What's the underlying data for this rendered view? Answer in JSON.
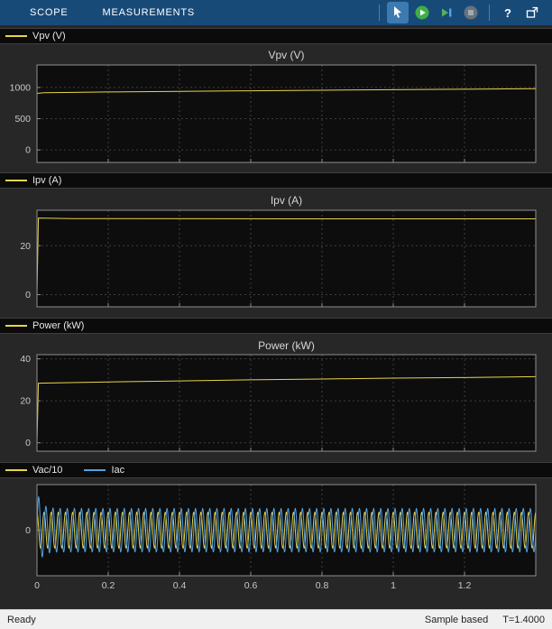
{
  "toolbar": {
    "tabs": [
      {
        "label": "SCOPE"
      },
      {
        "label": "MEASUREMENTS"
      }
    ],
    "help_label": "?",
    "buttons": [
      "pointer-tool",
      "run",
      "step-forward",
      "stop",
      "help",
      "dock"
    ]
  },
  "statusbar": {
    "left": "Ready",
    "sample": "Sample based",
    "time": "T=1.4000"
  },
  "colors": {
    "yellow": "#e8d44c",
    "blue": "#53a2e0",
    "grid": "#3e3e3e",
    "axes_bg": "#0d0d0d",
    "box": "#8f8f8f",
    "run_green": "#3fae49",
    "toolbar_blue": "#184a78"
  },
  "chart_data": [
    {
      "type": "line",
      "title": "Vpv (V)",
      "legend": [
        {
          "label": "Vpv (V)",
          "color_key": "yellow"
        }
      ],
      "xlim": [
        0,
        1.4
      ],
      "xticks": [
        0,
        0.2,
        0.4,
        0.6,
        0.8,
        1,
        1.2
      ],
      "ylim": [
        -200,
        1360
      ],
      "yticks": [
        1000,
        500,
        0
      ],
      "grid": true,
      "series": [
        {
          "name": "Vpv (V)",
          "color_key": "yellow",
          "signal": {
            "kind": "piecewise",
            "points": [
              [
                0,
                905
              ],
              [
                0.02,
                916
              ],
              [
                0.1,
                921
              ],
              [
                0.2,
                928
              ],
              [
                0.4,
                938
              ],
              [
                0.6,
                947
              ],
              [
                0.8,
                956
              ],
              [
                1.0,
                964
              ],
              [
                1.2,
                972
              ],
              [
                1.4,
                980
              ]
            ]
          }
        }
      ]
    },
    {
      "type": "line",
      "title": "Ipv (A)",
      "legend": [
        {
          "label": "Ipv (A)",
          "color_key": "yellow"
        }
      ],
      "xlim": [
        0,
        1.4
      ],
      "xticks": [
        0,
        0.2,
        0.4,
        0.6,
        0.8,
        1,
        1.2
      ],
      "ylim": [
        -5,
        34.5
      ],
      "yticks": [
        20,
        0
      ],
      "grid": true,
      "series": [
        {
          "name": "Ipv (A)",
          "color_key": "yellow",
          "signal": {
            "kind": "piecewise",
            "points": [
              [
                0,
                0
              ],
              [
                0.004,
                31.3
              ],
              [
                0.1,
                31.1
              ],
              [
                0.7,
                31.0
              ],
              [
                1.4,
                31.0
              ]
            ]
          }
        }
      ]
    },
    {
      "type": "line",
      "title": "Power (kW)",
      "legend": [
        {
          "label": "Power (kW)",
          "color_key": "yellow"
        }
      ],
      "xlim": [
        0,
        1.4
      ],
      "xticks": [
        0,
        0.2,
        0.4,
        0.6,
        0.8,
        1,
        1.2
      ],
      "ylim": [
        -4,
        42
      ],
      "yticks": [
        40,
        20,
        0
      ],
      "grid": true,
      "series": [
        {
          "name": "Power (kW)",
          "color_key": "yellow",
          "signal": {
            "kind": "piecewise",
            "points": [
              [
                0,
                0
              ],
              [
                0.004,
                28.4
              ],
              [
                0.2,
                29.0
              ],
              [
                0.4,
                29.5
              ],
              [
                0.6,
                30.0
              ],
              [
                0.8,
                30.4
              ],
              [
                1.0,
                30.8
              ],
              [
                1.2,
                31.1
              ],
              [
                1.4,
                31.5
              ]
            ]
          }
        }
      ]
    },
    {
      "type": "line",
      "title": "",
      "legend": [
        {
          "label": "Vac/10",
          "color_key": "yellow"
        },
        {
          "label": "Iac",
          "color_key": "blue"
        }
      ],
      "xlim": [
        0,
        1.4
      ],
      "xticks": [
        0,
        0.2,
        0.4,
        0.6,
        0.8,
        1,
        1.2
      ],
      "xtick_labels": [
        "0",
        "0.2",
        "0.4",
        "0.6",
        "0.8",
        "1",
        "1.2"
      ],
      "ylim": [
        -42,
        42
      ],
      "yticks": [
        0
      ],
      "grid": true,
      "series": [
        {
          "name": "Vac/10",
          "color_key": "yellow",
          "signal": {
            "kind": "sine",
            "amplitude": 16.5,
            "frequency": 50,
            "phase": 1.571
          }
        },
        {
          "name": "Iac",
          "color_key": "blue",
          "signal": {
            "kind": "sine",
            "amplitude": 20,
            "frequency": 50,
            "phase": 0,
            "transient_amp": 16,
            "transient_tau": 0.012
          }
        }
      ]
    }
  ]
}
